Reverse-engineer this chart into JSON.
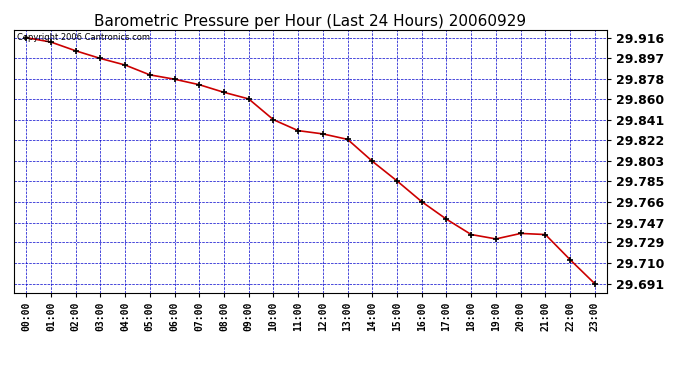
{
  "title": "Barometric Pressure per Hour (Last 24 Hours) 20060929",
  "copyright": "Copyright 2006 Cantronics.com",
  "hours": [
    "00:00",
    "01:00",
    "02:00",
    "03:00",
    "04:00",
    "05:00",
    "06:00",
    "07:00",
    "08:00",
    "09:00",
    "10:00",
    "11:00",
    "12:00",
    "13:00",
    "14:00",
    "15:00",
    "16:00",
    "17:00",
    "18:00",
    "19:00",
    "20:00",
    "21:00",
    "22:00",
    "23:00"
  ],
  "values": [
    29.916,
    29.912,
    29.904,
    29.897,
    29.891,
    29.882,
    29.878,
    29.873,
    29.866,
    29.86,
    29.841,
    29.831,
    29.828,
    29.823,
    29.803,
    29.785,
    29.766,
    29.75,
    29.736,
    29.732,
    29.737,
    29.736,
    29.713,
    29.691
  ],
  "yticks": [
    29.691,
    29.71,
    29.729,
    29.747,
    29.766,
    29.785,
    29.803,
    29.822,
    29.841,
    29.86,
    29.878,
    29.897,
    29.916
  ],
  "ylim_min": 29.683,
  "ylim_max": 29.923,
  "line_color": "#cc0000",
  "marker_color": "#000000",
  "grid_color": "#0000cc",
  "bg_color": "#ffffff",
  "plot_bg_color": "#ffffff",
  "title_fontsize": 11,
  "copyright_fontsize": 6,
  "ytick_fontsize": 9,
  "xtick_fontsize": 7
}
